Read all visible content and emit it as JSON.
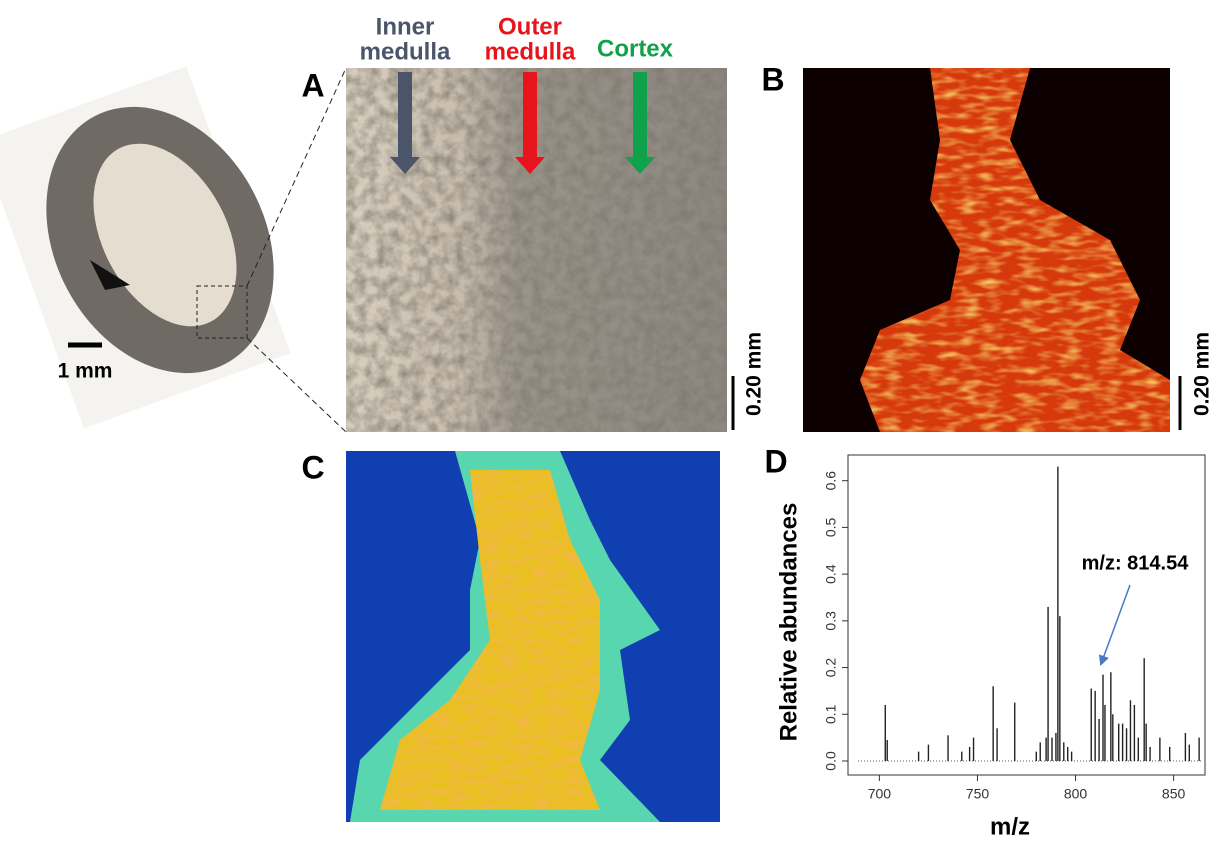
{
  "panels": {
    "a": "A",
    "b": "B",
    "c": "C",
    "d": "D",
    "regions": {
      "inner": [
        "Inner",
        "medulla"
      ],
      "outer": [
        "Outer",
        "medulla"
      ],
      "cortex": "Cortex"
    },
    "section_scale": "1 mm",
    "scale_a": "0.20 mm",
    "scale_b": "0.20 mm"
  },
  "chart_data": {
    "type": "spectrum",
    "ylabel": "Relative abundances",
    "xlabel": "m/z",
    "annotation": "m/z: 814.54",
    "color": "#222222",
    "x": [
      703,
      704,
      720,
      725,
      735,
      742,
      746,
      748,
      758,
      760,
      769,
      780,
      782,
      785,
      786,
      788,
      790,
      791,
      792,
      794,
      796,
      798,
      808,
      810,
      812,
      814,
      815,
      818,
      819,
      822,
      824,
      826,
      828,
      830,
      832,
      835,
      836,
      838,
      843,
      848,
      856,
      858,
      863
    ],
    "values": [
      0.12,
      0.045,
      0.02,
      0.035,
      0.055,
      0.02,
      0.03,
      0.05,
      0.16,
      0.07,
      0.125,
      0.02,
      0.04,
      0.05,
      0.33,
      0.05,
      0.06,
      0.63,
      0.31,
      0.04,
      0.03,
      0.02,
      0.155,
      0.15,
      0.09,
      0.185,
      0.12,
      0.19,
      0.1,
      0.08,
      0.08,
      0.07,
      0.13,
      0.12,
      0.05,
      0.22,
      0.08,
      0.03,
      0.05,
      0.03,
      0.06,
      0.035,
      0.05
    ],
    "xlim": [
      684,
      866
    ],
    "ylim": [
      -0.03,
      0.655
    ],
    "xticks": [
      700,
      750,
      800,
      850
    ],
    "yticks": [
      {
        "value": 0,
        "label": "0.0"
      },
      0.1,
      0.2,
      0.3,
      0.4,
      0.5,
      0.6
    ]
  }
}
